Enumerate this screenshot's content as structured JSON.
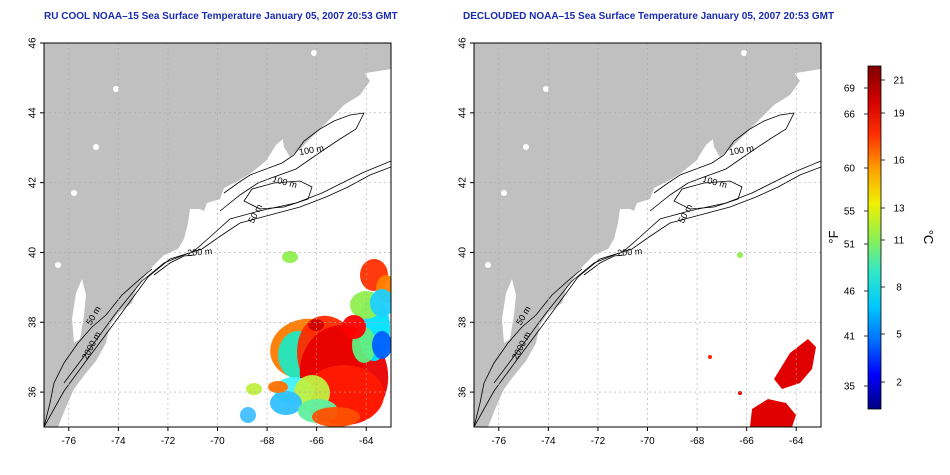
{
  "palette": {
    "land": "#c0c0c0",
    "ocean": "#ffffff",
    "title_color": "#1a2bb0",
    "grid": "#a8a8a8",
    "contour": "#000000"
  },
  "axes": {
    "lon_ticks": [
      "-76",
      "-74",
      "-72",
      "-70",
      "-68",
      "-66",
      "-64"
    ],
    "lat_ticks": [
      "36",
      "38",
      "40",
      "42",
      "44",
      "46"
    ],
    "lon_range": [
      -77,
      -63
    ],
    "lat_range": [
      35,
      46
    ]
  },
  "panels": [
    {
      "title": "RU COOL NOAA–15 Sea Surface Temperature January 05, 2007 20:53 GMT",
      "variant": "clouded"
    },
    {
      "title": "DECLOUDED NOAA–15 Sea Surface Temperature January 05, 2007 20:53 GMT",
      "variant": "declouded"
    }
  ],
  "contour_labels": {
    "m100_a": "100 m",
    "m100_b": "100 m",
    "m50_a": "50 m",
    "m200": "200 m",
    "m50_b": "50 m",
    "m2000": "2000 m"
  },
  "colorbar": {
    "unit_f": "°F",
    "unit_c": "°C",
    "f_ticks": [
      "69",
      "66",
      "60",
      "55",
      "51",
      "46",
      "41",
      "35"
    ],
    "c_ticks": [
      "21",
      "19",
      "16",
      "13",
      "11",
      "8",
      "5",
      "2"
    ],
    "gradient": [
      "#000080",
      "#0000ff",
      "#0070ff",
      "#00c8ff",
      "#30e8c8",
      "#90f050",
      "#f0f000",
      "#ffa000",
      "#ff3000",
      "#d00000",
      "#800000"
    ]
  }
}
